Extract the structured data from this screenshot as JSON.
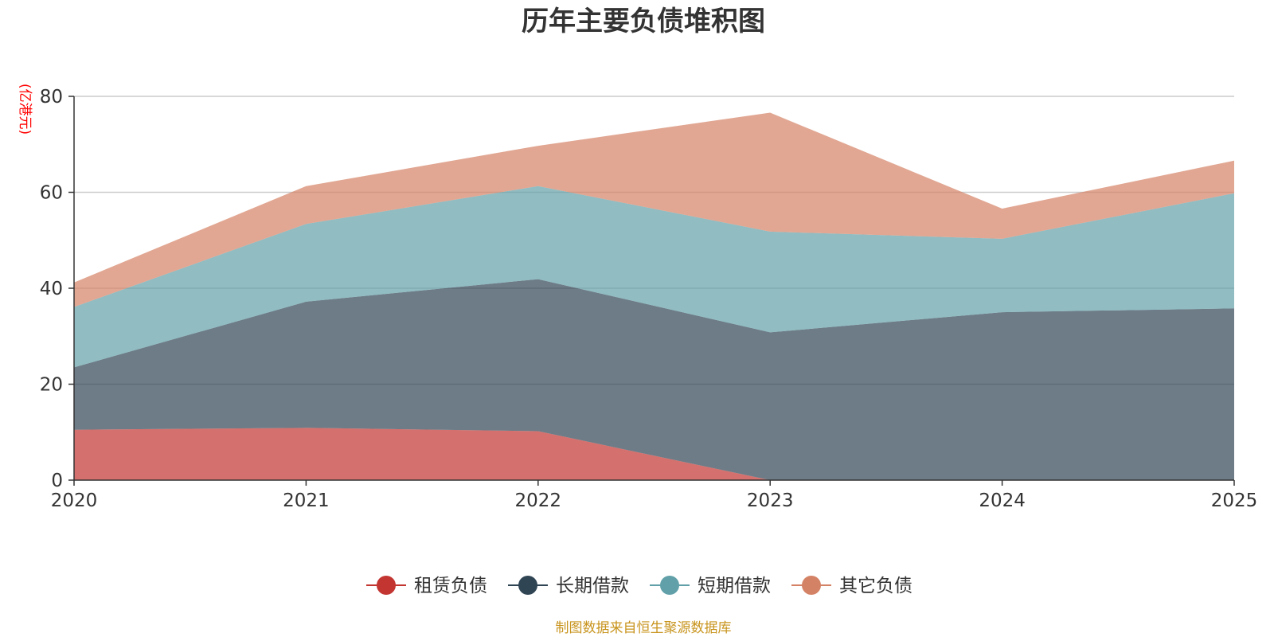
{
  "chart_data": {
    "type": "area",
    "stacked": true,
    "title": "历年主要负债堆积图",
    "ylabel": "(亿港元)",
    "xlabel": "",
    "x": [
      "2020",
      "2021",
      "2022",
      "2023",
      "2024",
      "2025"
    ],
    "ylim": [
      0,
      80
    ],
    "yticks": [
      0,
      20,
      40,
      60,
      80
    ],
    "grid": true,
    "legend_position": "bottom",
    "series": [
      {
        "name": "租赁负债",
        "color": "#c23531",
        "values": [
          10.5,
          10.9,
          10.2,
          0,
          0,
          0
        ]
      },
      {
        "name": "长期借款",
        "color": "#2f4554",
        "values": [
          13.0,
          26.3,
          31.7,
          30.8,
          35.0,
          35.8
        ]
      },
      {
        "name": "短期借款",
        "color": "#61a0a8",
        "values": [
          12.6,
          16.2,
          19.4,
          21.0,
          15.3,
          24.0
        ]
      },
      {
        "name": "其它负债",
        "color": "#d48265",
        "values": [
          5.1,
          7.9,
          8.4,
          24.8,
          6.3,
          6.8
        ]
      }
    ],
    "source": "制图数据来自恒生聚源数据库"
  },
  "colors": {
    "title": "#333333",
    "ylabel": "#ff0000",
    "source": "#c8941e",
    "grid": "#cccccc",
    "axis": "#333333"
  }
}
